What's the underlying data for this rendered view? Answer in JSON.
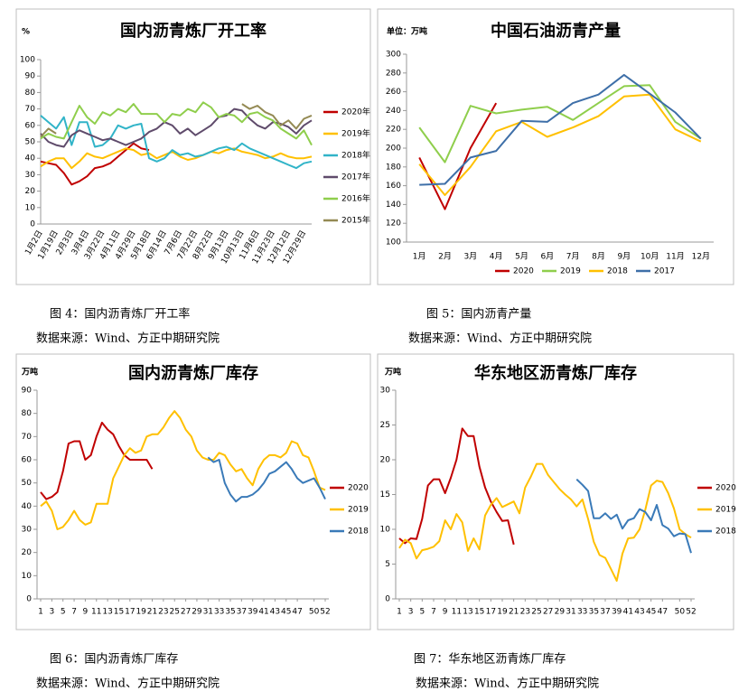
{
  "chart_data": [
    {
      "type": "line",
      "title": "国内沥青炼厂开工率",
      "unit": "%",
      "caption": "图 4：国内沥青炼厂开工率",
      "source": "数据来源：Wind、方正中期研究院",
      "legend": "right",
      "categories": [
        "1月2日",
        null,
        "1月19日",
        null,
        "2月3日",
        null,
        "3月4日",
        null,
        "3月22日",
        null,
        "4月11日",
        null,
        "4月29日",
        null,
        "5月18日",
        null,
        "6月14日",
        null,
        "7月6日",
        null,
        "7月22日",
        null,
        "8月22日",
        null,
        "9月13日",
        null,
        "10月13日",
        null,
        "11月6日",
        null,
        "11月23日",
        null,
        "12月12日",
        null,
        "12月29日",
        null
      ],
      "ylim": [
        0,
        100
      ],
      "yticks": [
        0,
        10,
        20,
        30,
        40,
        50,
        60,
        70,
        80,
        90,
        100
      ],
      "series": [
        {
          "name": "2020年",
          "color": "#c00000",
          "values": [
            38,
            37,
            36,
            31,
            24,
            26,
            29,
            34,
            35,
            37,
            41,
            45,
            49,
            46,
            45,
            null,
            null,
            null,
            null,
            null,
            null,
            null,
            null,
            null,
            null,
            null,
            null,
            null,
            null,
            null,
            null,
            null,
            null,
            null,
            null,
            null
          ]
        },
        {
          "name": "2019年",
          "color": "#ffc000",
          "values": [
            35,
            38,
            40,
            40,
            34,
            38,
            43,
            41,
            40,
            42,
            44,
            46,
            45,
            42,
            43,
            40,
            42,
            44,
            41,
            39,
            40,
            42,
            44,
            43,
            45,
            46,
            44,
            43,
            42,
            40,
            41,
            43,
            41,
            40,
            40,
            41
          ]
        },
        {
          "name": "2018年",
          "color": "#31b4c8",
          "values": [
            66,
            62,
            58,
            65,
            48,
            62,
            62,
            47,
            48,
            52,
            60,
            58,
            60,
            61,
            40,
            38,
            40,
            45,
            42,
            43,
            41,
            42,
            44,
            46,
            47,
            45,
            49,
            46,
            44,
            42,
            40,
            38,
            36,
            34,
            37,
            38
          ]
        },
        {
          "name": "2017年",
          "color": "#5f4b6b",
          "values": [
            55,
            50,
            48,
            47,
            54,
            57,
            55,
            53,
            51,
            52,
            50,
            48,
            50,
            52,
            56,
            58,
            62,
            60,
            55,
            58,
            54,
            57,
            60,
            65,
            66,
            70,
            69,
            64,
            60,
            58,
            62,
            61,
            59,
            55,
            60,
            63
          ]
        },
        {
          "name": "2016年",
          "color": "#8fce4c",
          "values": [
            52,
            55,
            53,
            52,
            62,
            72,
            65,
            61,
            68,
            66,
            70,
            68,
            73,
            67,
            67,
            67,
            62,
            67,
            66,
            70,
            68,
            74,
            71,
            65,
            67,
            66,
            62,
            67,
            68,
            65,
            63,
            58,
            55,
            52,
            57,
            48
          ]
        },
        {
          "name": "2015年",
          "color": "#948a54",
          "values": [
            53,
            58,
            55,
            null,
            null,
            null,
            null,
            null,
            null,
            null,
            null,
            null,
            null,
            null,
            null,
            null,
            null,
            null,
            null,
            null,
            null,
            null,
            null,
            null,
            null,
            null,
            73,
            70,
            72,
            68,
            66,
            60,
            63,
            58,
            64,
            66
          ]
        }
      ]
    },
    {
      "type": "line",
      "title": "中国石油沥青产量",
      "unit": "单位：万吨",
      "caption": "图 5：国内沥青产量",
      "source": "数据来源：Wind、方正中期研究院",
      "legend": "bottom",
      "categories": [
        "1月",
        "2月",
        "3月",
        "4月",
        "5月",
        "6月",
        "7月",
        "8月",
        "9月",
        "10月",
        "11月",
        "12月"
      ],
      "ylim": [
        100,
        300
      ],
      "yticks": [
        100,
        120,
        140,
        160,
        180,
        200,
        220,
        240,
        260,
        280,
        300
      ],
      "series": [
        {
          "name": "2020",
          "color": "#c00000",
          "values": [
            190,
            135,
            200,
            248,
            null,
            null,
            null,
            null,
            null,
            null,
            null,
            null
          ]
        },
        {
          "name": "2019",
          "color": "#8fce4c",
          "values": [
            222,
            185,
            245,
            237,
            241,
            244,
            230,
            248,
            266,
            267,
            228,
            210
          ]
        },
        {
          "name": "2018",
          "color": "#ffc000",
          "values": [
            183,
            150,
            180,
            218,
            228,
            212,
            222,
            234,
            255,
            257,
            220,
            207
          ]
        },
        {
          "name": "2017",
          "color": "#3e6fa8",
          "values": [
            161,
            162,
            190,
            197,
            229,
            228,
            248,
            257,
            278,
            258,
            238,
            210
          ]
        }
      ]
    },
    {
      "type": "line",
      "title": "国内沥青炼厂库存",
      "unit": "万吨",
      "caption": "图 6：国内沥青炼厂库存",
      "source": "数据来源：Wind、方正中期研究院",
      "legend": "right",
      "x": [
        1,
        2,
        3,
        4,
        5,
        6,
        7,
        8,
        9,
        10,
        11,
        12,
        13,
        14,
        15,
        16,
        17,
        18,
        19,
        20,
        21,
        22,
        23,
        24,
        25,
        26,
        27,
        28,
        29,
        30,
        31,
        32,
        33,
        34,
        35,
        36,
        37,
        38,
        39,
        40,
        41,
        42,
        43,
        44,
        45,
        46,
        47,
        48,
        49,
        50,
        51,
        52
      ],
      "xlim": [
        1,
        52
      ],
      "xticks": [
        1,
        3,
        5,
        7,
        9,
        11,
        13,
        15,
        17,
        19,
        21,
        23,
        25,
        27,
        29,
        31,
        33,
        35,
        37,
        39,
        41,
        43,
        45,
        47,
        50,
        52
      ],
      "ylim": [
        0,
        90
      ],
      "yticks": [
        0,
        10,
        20,
        30,
        40,
        50,
        60,
        70,
        80,
        90
      ],
      "series": [
        {
          "name": "2020",
          "color": "#c00000",
          "values": [
            46,
            43,
            44,
            46,
            55,
            67,
            68,
            68,
            60,
            62,
            70,
            76,
            73,
            71,
            66,
            62,
            60,
            60,
            60,
            60,
            56,
            null,
            null,
            null,
            null,
            null,
            null,
            null,
            null,
            null,
            null,
            null,
            null,
            null,
            null,
            null,
            null,
            null,
            null,
            null,
            null,
            null,
            null,
            null,
            null,
            null,
            null,
            null,
            null,
            null,
            null,
            null
          ]
        },
        {
          "name": "2019",
          "color": "#ffc000",
          "values": [
            40,
            42,
            38,
            30,
            31,
            34,
            38,
            34,
            32,
            33,
            41,
            41,
            41,
            52,
            57,
            62,
            65,
            63,
            64,
            70,
            71,
            71,
            74,
            78,
            81,
            78,
            73,
            70,
            64,
            61,
            60,
            60,
            63,
            62,
            58,
            55,
            56,
            52,
            49,
            56,
            60,
            62,
            62,
            61,
            63,
            68,
            67,
            62,
            61,
            55,
            48,
            47
          ]
        },
        {
          "name": "2018",
          "color": "#3a7ab8",
          "values": [
            null,
            null,
            null,
            null,
            null,
            null,
            null,
            null,
            null,
            null,
            null,
            null,
            null,
            null,
            null,
            null,
            null,
            null,
            null,
            null,
            null,
            null,
            null,
            null,
            null,
            null,
            null,
            null,
            null,
            null,
            61,
            59,
            60,
            50,
            45,
            42,
            44,
            44,
            45,
            47,
            50,
            54,
            55,
            57,
            59,
            56,
            52,
            50,
            51,
            52,
            48,
            43
          ]
        }
      ]
    },
    {
      "type": "line",
      "title": "华东地区沥青炼厂库存",
      "unit": "万吨",
      "caption": "图 7：华东地区沥青炼厂库存",
      "source": "数据来源：Wind、方正中期研究院",
      "legend": "right",
      "x": [
        1,
        2,
        3,
        4,
        5,
        6,
        7,
        8,
        9,
        10,
        11,
        12,
        13,
        14,
        15,
        16,
        17,
        18,
        19,
        20,
        21,
        22,
        23,
        24,
        25,
        26,
        27,
        28,
        29,
        30,
        31,
        32,
        33,
        34,
        35,
        36,
        37,
        38,
        39,
        40,
        41,
        42,
        43,
        44,
        45,
        46,
        47,
        48,
        49,
        50,
        51,
        52
      ],
      "xlim": [
        1,
        52
      ],
      "xticks": [
        1,
        3,
        5,
        7,
        9,
        11,
        13,
        15,
        17,
        19,
        21,
        23,
        25,
        27,
        29,
        31,
        33,
        35,
        37,
        39,
        41,
        43,
        45,
        47,
        50,
        52
      ],
      "ylim": [
        0,
        30
      ],
      "yticks": [
        0,
        5,
        10,
        15,
        20,
        25,
        30
      ],
      "series": [
        {
          "name": "2020",
          "color": "#c00000",
          "values": [
            8.7,
            8,
            8.7,
            8.6,
            11.5,
            16.3,
            17.2,
            17.2,
            15.2,
            17.4,
            20,
            24.5,
            23.4,
            23.4,
            19,
            16,
            14,
            12.5,
            11.2,
            11.3,
            7.8,
            null,
            null,
            null,
            null,
            null,
            null,
            null,
            null,
            null,
            null,
            null,
            null,
            null,
            null,
            null,
            null,
            null,
            null,
            null,
            null,
            null,
            null,
            null,
            null,
            null,
            null,
            null,
            null,
            null,
            null,
            null
          ]
        },
        {
          "name": "2019",
          "color": "#ffc000",
          "values": [
            7.3,
            8.5,
            8,
            5.8,
            7,
            7.2,
            7.5,
            8.3,
            11.3,
            10,
            12.2,
            11,
            6.9,
            8.7,
            7.1,
            12,
            13.5,
            14.5,
            13.2,
            13.6,
            14,
            12.3,
            16,
            17.6,
            19.4,
            19.4,
            17.8,
            16.8,
            15.8,
            15,
            14.3,
            13.3,
            14.3,
            11.5,
            8.2,
            6.3,
            5.9,
            4.3,
            2.6,
            6.5,
            8.7,
            8.8,
            10,
            12.8,
            16.3,
            17,
            16.8,
            15.2,
            13,
            10,
            9.3,
            8.8
          ]
        },
        {
          "name": "2018",
          "color": "#3a7ab8",
          "values": [
            null,
            null,
            null,
            null,
            null,
            null,
            null,
            null,
            null,
            null,
            null,
            null,
            null,
            null,
            null,
            null,
            null,
            null,
            null,
            null,
            null,
            null,
            null,
            null,
            null,
            null,
            null,
            null,
            null,
            null,
            null,
            17.2,
            16.4,
            15.5,
            11.6,
            11.6,
            12.3,
            11.5,
            12.1,
            10.1,
            11.3,
            11.6,
            12.9,
            12.5,
            11.3,
            13.5,
            10.6,
            10.1,
            9,
            9.4,
            9.3,
            6.6
          ]
        }
      ]
    }
  ]
}
